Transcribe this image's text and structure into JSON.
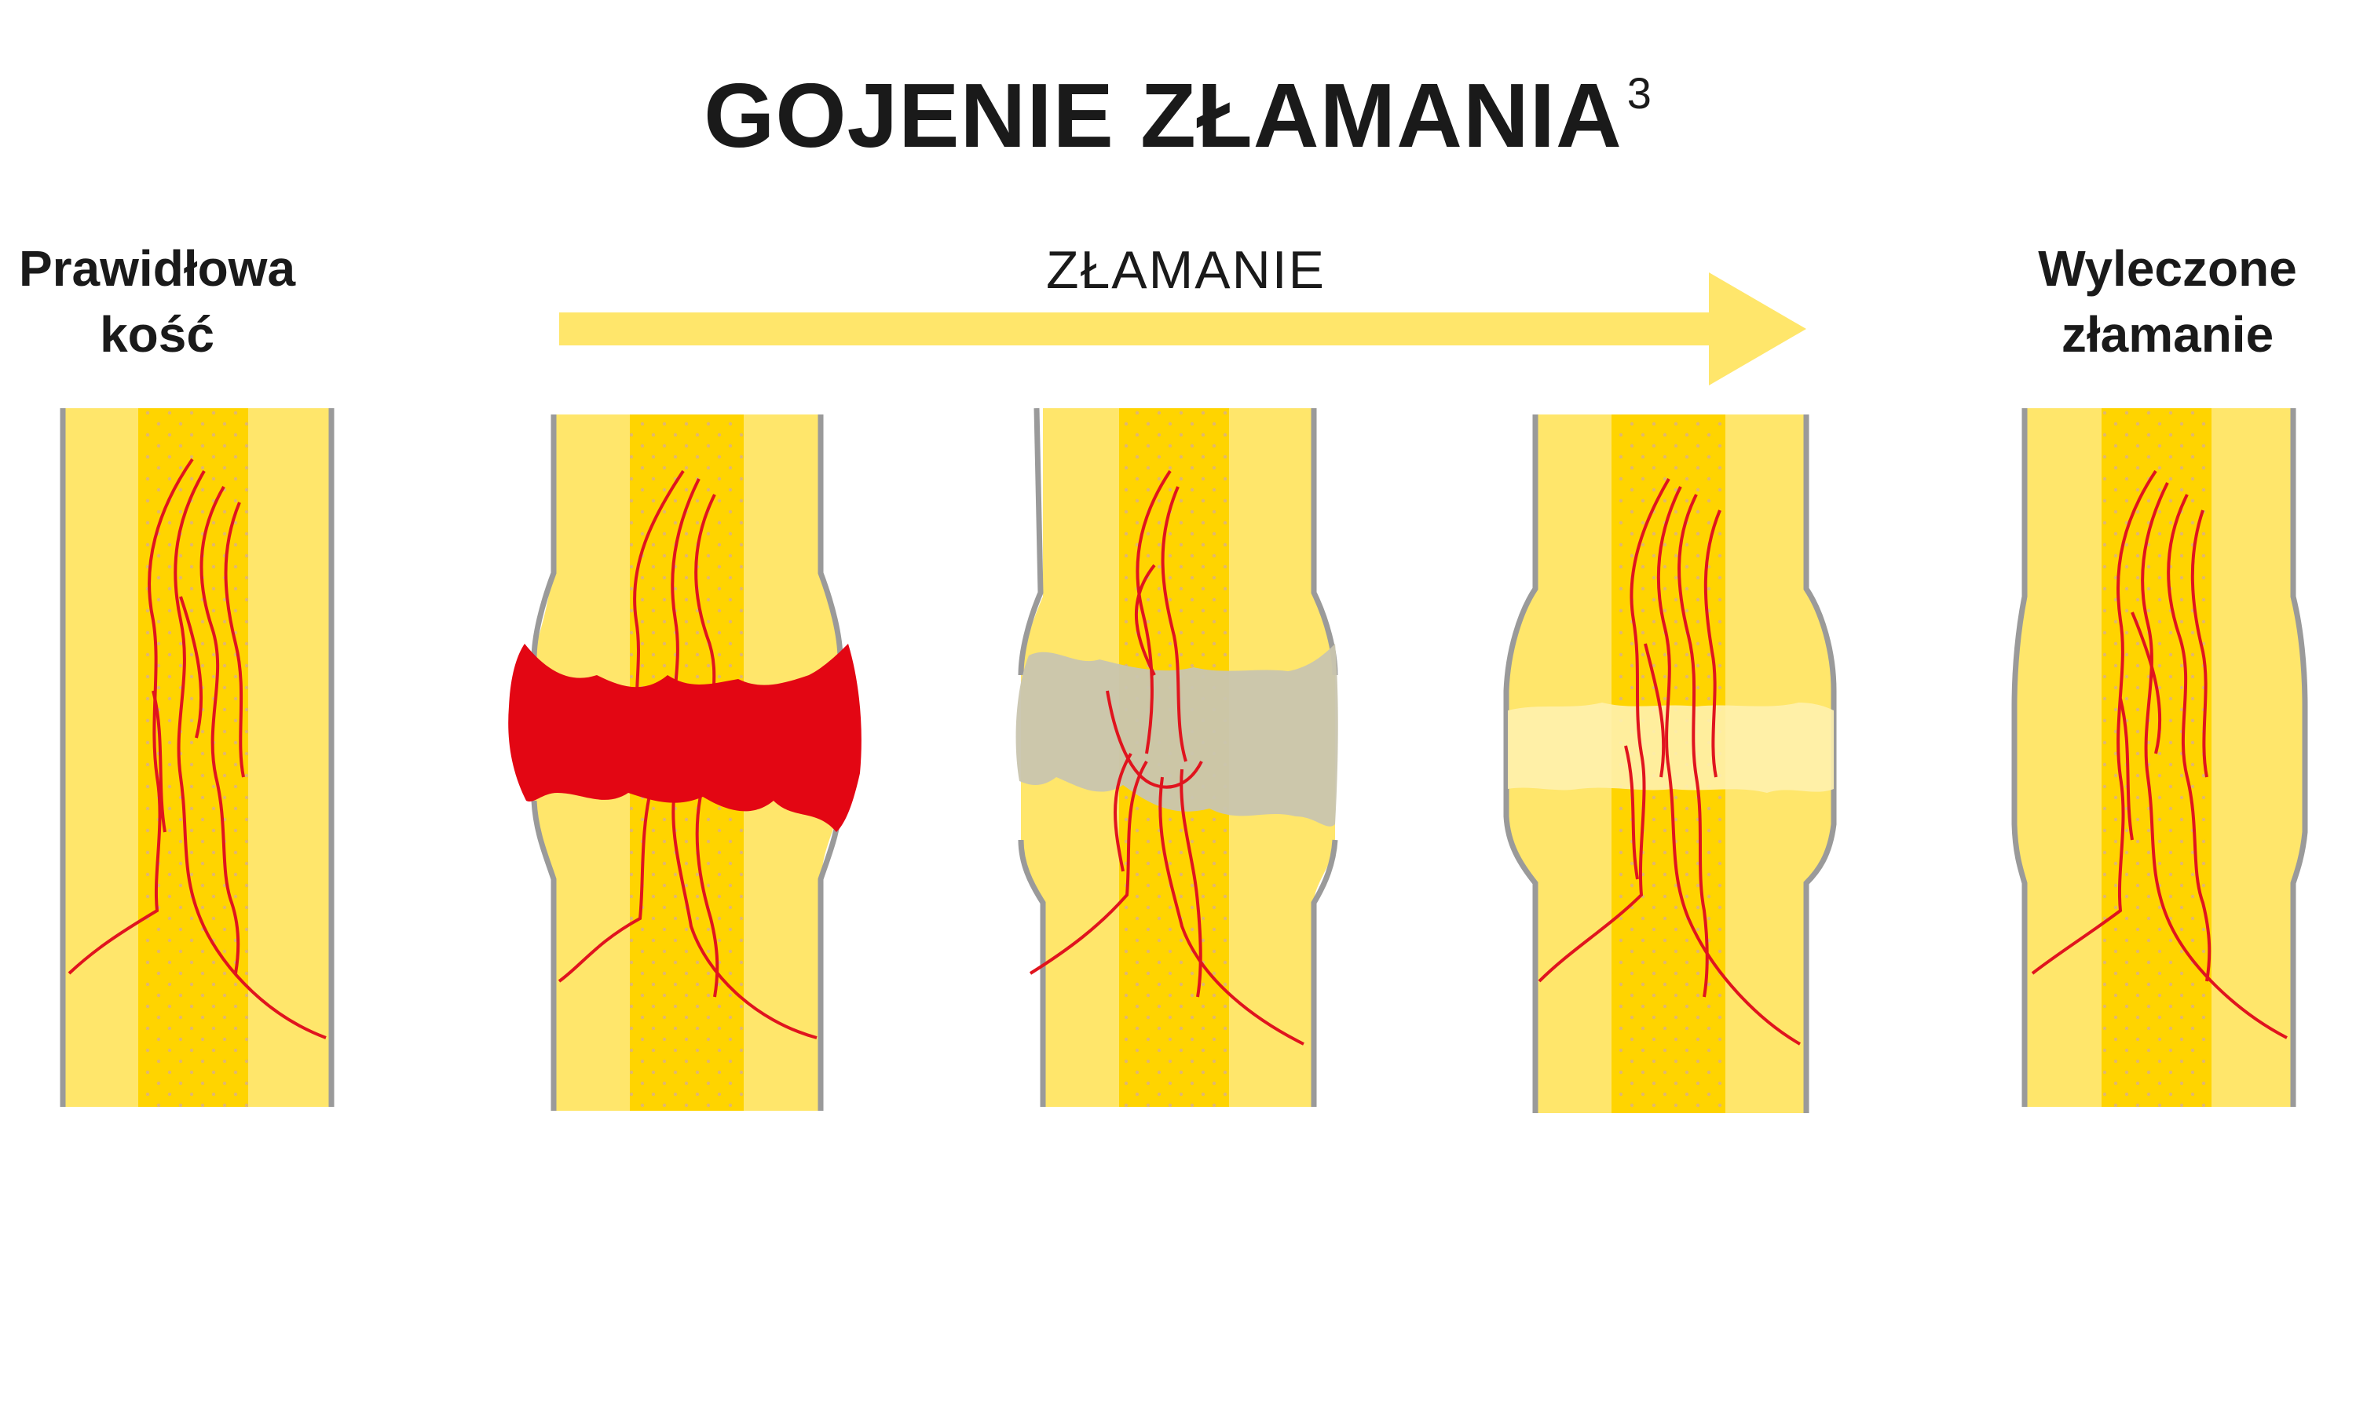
{
  "title": {
    "text": "GOJENIE ZŁAMANIA",
    "footnote": "3"
  },
  "left_label": {
    "line1": "Prawidłowa",
    "line2": "kość"
  },
  "arrow_label": "ZŁAMANIE",
  "right_label": {
    "line1": "Wyleczone",
    "line2": "złamanie"
  },
  "colors": {
    "bone": "#FFE66B",
    "marrow": "#FFD400",
    "vessel": "#E0141E",
    "hematoma": "#E30613",
    "soft_callus": "#C9C5AF",
    "hard_callus": "#FFF1AE",
    "outline": "#9A9A9A",
    "arrow": "#FFE66B"
  },
  "stages": [
    {
      "name": "normal-bone"
    },
    {
      "name": "hematoma"
    },
    {
      "name": "soft-callus"
    },
    {
      "name": "hard-callus"
    },
    {
      "name": "healed-bone"
    }
  ]
}
